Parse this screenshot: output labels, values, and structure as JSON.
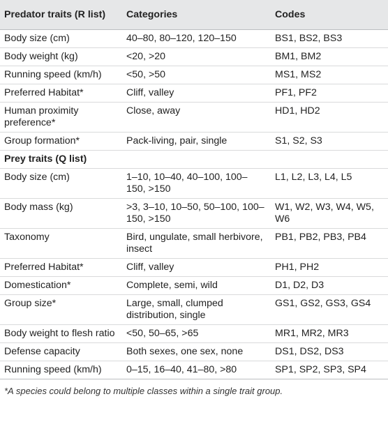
{
  "header": {
    "col1": "Predator traits (R list)",
    "col2": "Categories",
    "col3": "Codes"
  },
  "predator_rows": [
    {
      "trait": "Body size (cm)",
      "categories": "40–80, 80–120, 120–150",
      "codes": "BS1, BS2, BS3"
    },
    {
      "trait": "Body weight (kg)",
      "categories": "<20, >20",
      "codes": "BM1, BM2"
    },
    {
      "trait": "Running speed (km/h)",
      "categories": "<50, >50",
      "codes": "MS1, MS2"
    },
    {
      "trait": "Preferred Habitat*",
      "categories": "Cliff, valley",
      "codes": "PF1, PF2"
    },
    {
      "trait": "Human proximity preference*",
      "categories": "Close, away",
      "codes": "HD1, HD2"
    },
    {
      "trait": "Group formation*",
      "categories": "Pack-living, pair, single",
      "codes": "S1, S2, S3"
    }
  ],
  "prey_section_title": "Prey traits (Q list)",
  "prey_rows": [
    {
      "trait": "Body size (cm)",
      "categories": "1–10, 10–40, 40–100, 100–150, >150",
      "codes": "L1, L2, L3, L4, L5"
    },
    {
      "trait": "Body mass (kg)",
      "categories": ">3, 3–10, 10–50, 50–100, 100–150, >150",
      "codes": "W1, W2, W3, W4, W5, W6"
    },
    {
      "trait": "Taxonomy",
      "categories": "Bird, ungulate, small herbivore, insect",
      "codes": "PB1, PB2, PB3, PB4"
    },
    {
      "trait": "Preferred Habitat*",
      "categories": "Cliff, valley",
      "codes": "PH1, PH2"
    },
    {
      "trait": "Domestication*",
      "categories": "Complete, semi, wild",
      "codes": "D1, D2, D3"
    },
    {
      "trait": "Group size*",
      "categories": "Large, small, clumped distribution, single",
      "codes": "GS1, GS2, GS3, GS4"
    },
    {
      "trait": "Body weight to flesh ratio",
      "categories": "<50, 50–65, >65",
      "codes": "MR1, MR2, MR3"
    },
    {
      "trait": "Defense capacity",
      "categories": "Both sexes, one sex, none",
      "codes": "DS1, DS2, DS3"
    },
    {
      "trait": "Running speed (km/h)",
      "categories": "0–15, 16–40, 41–80, >80",
      "codes": "SP1, SP2, SP3, SP4"
    }
  ],
  "footnote": "*A species could belong to multiple classes within a single trait group."
}
